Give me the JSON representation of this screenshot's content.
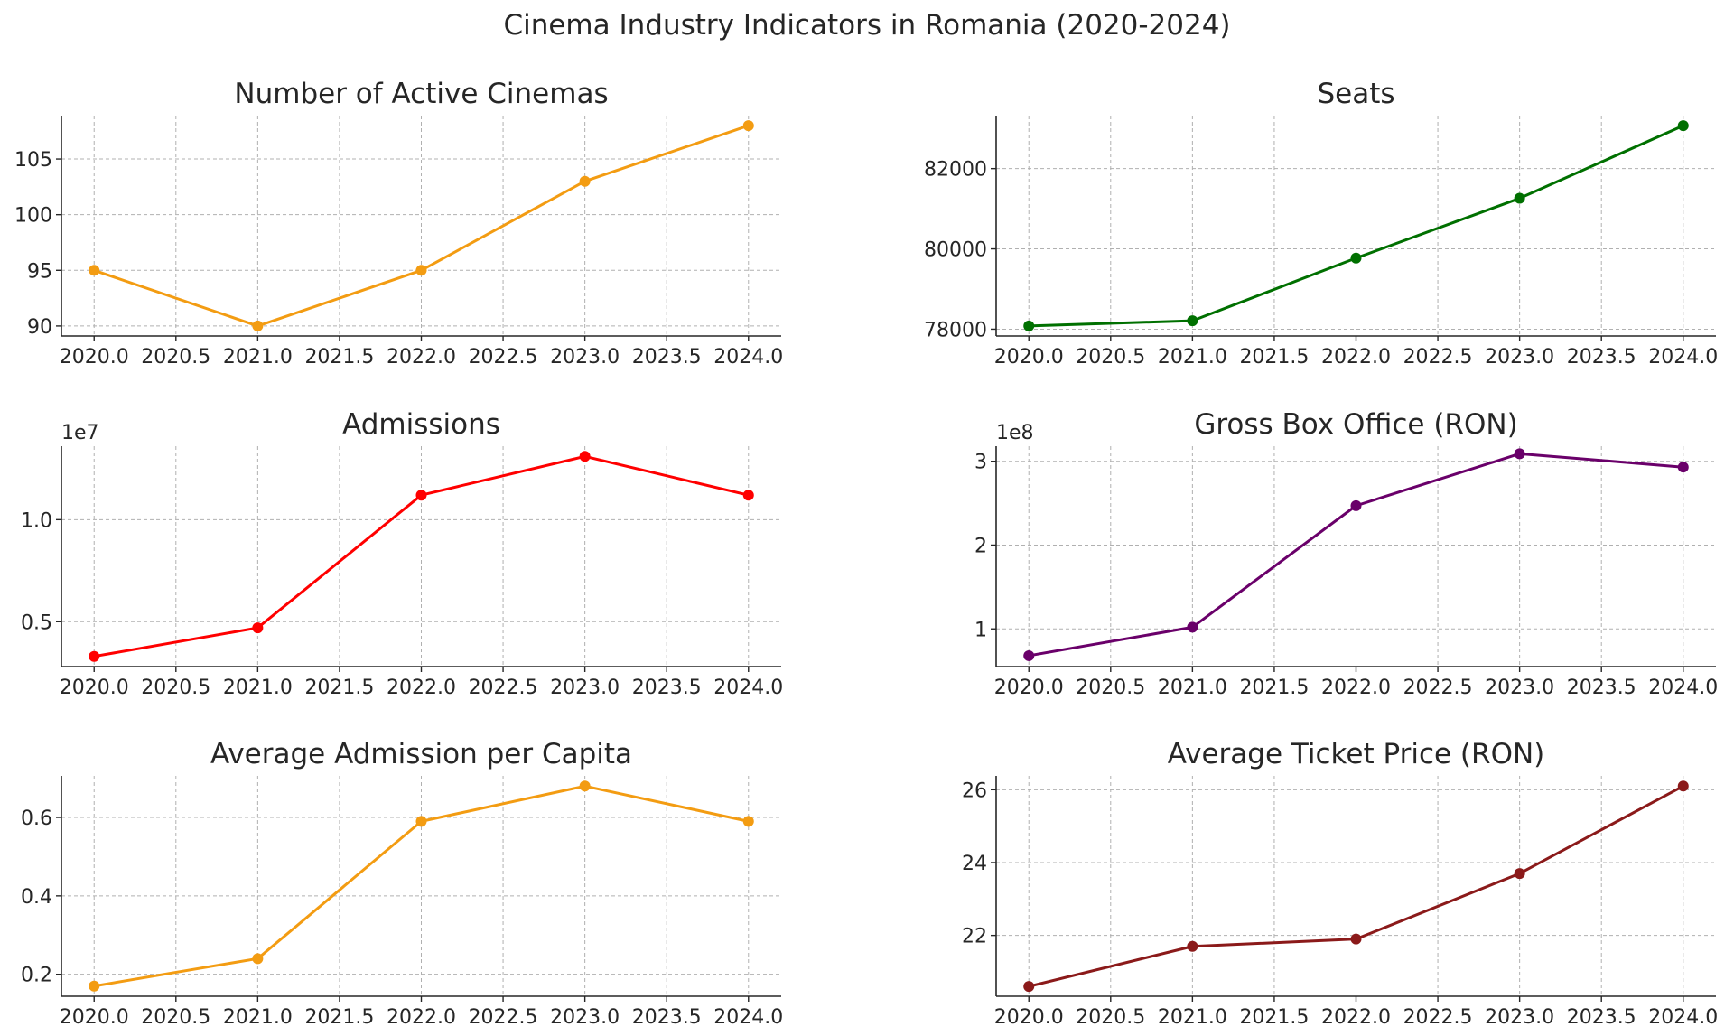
{
  "figure_title": "Cinema Industry Indicators in Romania (2020-2024)",
  "chart_data": [
    {
      "type": "line",
      "title": "Number of Active Cinemas",
      "xlabel": "",
      "ylabel": "",
      "color": "#f39c12",
      "x": [
        2020,
        2021,
        2022,
        2023,
        2024
      ],
      "series": [
        {
          "values": [
            95,
            90,
            95,
            103,
            108
          ]
        }
      ],
      "xlim": [
        2019.8,
        2024.2
      ],
      "ylim": [
        89.1,
        108.9
      ],
      "xticks": [
        2020,
        2020.5,
        2021,
        2021.5,
        2022,
        2022.5,
        2023,
        2023.5,
        2024
      ],
      "xtick_labels": [
        "2020.0",
        "2020.5",
        "2021.0",
        "2021.5",
        "2022.0",
        "2022.5",
        "2023.0",
        "2023.5",
        "2024.0"
      ],
      "yticks": [
        90,
        95,
        100,
        105
      ],
      "ytick_labels": [
        "90",
        "95",
        "100",
        "105"
      ],
      "offset_label": "",
      "grid": true
    },
    {
      "type": "line",
      "title": "Seats",
      "xlabel": "",
      "ylabel": "",
      "color": "#007000",
      "x": [
        2020,
        2021,
        2022,
        2023,
        2024
      ],
      "series": [
        {
          "values": [
            78080,
            78210,
            79770,
            81260,
            83070
          ]
        }
      ],
      "xlim": [
        2019.8,
        2024.2
      ],
      "ylim": [
        77830,
        83320
      ],
      "xticks": [
        2020,
        2020.5,
        2021,
        2021.5,
        2022,
        2022.5,
        2023,
        2023.5,
        2024
      ],
      "xtick_labels": [
        "2020.0",
        "2020.5",
        "2021.0",
        "2021.5",
        "2022.0",
        "2022.5",
        "2023.0",
        "2023.5",
        "2024.0"
      ],
      "yticks": [
        78000,
        80000,
        82000
      ],
      "ytick_labels": [
        "78000",
        "80000",
        "82000"
      ],
      "offset_label": "",
      "grid": true
    },
    {
      "type": "line",
      "title": "Admissions",
      "xlabel": "",
      "ylabel": "",
      "color": "#ff0000",
      "x": [
        2020,
        2021,
        2022,
        2023,
        2024
      ],
      "series": [
        {
          "values": [
            3300000,
            4700000,
            11200000,
            13100000,
            11200000
          ]
        }
      ],
      "xlim": [
        2019.8,
        2024.2
      ],
      "ylim": [
        2800000,
        13600000
      ],
      "xticks": [
        2020,
        2020.5,
        2021,
        2021.5,
        2022,
        2022.5,
        2023,
        2023.5,
        2024
      ],
      "xtick_labels": [
        "2020.0",
        "2020.5",
        "2021.0",
        "2021.5",
        "2022.0",
        "2022.5",
        "2023.0",
        "2023.5",
        "2024.0"
      ],
      "yticks": [
        5000000,
        10000000
      ],
      "ytick_labels": [
        "0.5",
        "1.0"
      ],
      "offset_label": "1e7",
      "grid": true
    },
    {
      "type": "line",
      "title": "Gross Box Office (RON)",
      "xlabel": "",
      "ylabel": "",
      "color": "#6a006a",
      "x": [
        2020,
        2021,
        2022,
        2023,
        2024
      ],
      "series": [
        {
          "values": [
            68000000,
            102000000,
            247000000,
            309000000,
            293000000
          ]
        }
      ],
      "xlim": [
        2019.8,
        2024.2
      ],
      "ylim": [
        55000000,
        318000000
      ],
      "xticks": [
        2020,
        2020.5,
        2021,
        2021.5,
        2022,
        2022.5,
        2023,
        2023.5,
        2024
      ],
      "xtick_labels": [
        "2020.0",
        "2020.5",
        "2021.0",
        "2021.5",
        "2022.0",
        "2022.5",
        "2023.0",
        "2023.5",
        "2024.0"
      ],
      "yticks": [
        100000000,
        200000000,
        300000000
      ],
      "ytick_labels": [
        "1",
        "2",
        "3"
      ],
      "offset_label": "1e8",
      "grid": true
    },
    {
      "type": "line",
      "title": "Average Admission per Capita",
      "xlabel": "",
      "ylabel": "",
      "color": "#f39c12",
      "x": [
        2020,
        2021,
        2022,
        2023,
        2024
      ],
      "series": [
        {
          "values": [
            0.17,
            0.24,
            0.59,
            0.68,
            0.59
          ]
        }
      ],
      "xlim": [
        2019.8,
        2024.2
      ],
      "ylim": [
        0.144,
        0.706
      ],
      "xticks": [
        2020,
        2020.5,
        2021,
        2021.5,
        2022,
        2022.5,
        2023,
        2023.5,
        2024
      ],
      "xtick_labels": [
        "2020.0",
        "2020.5",
        "2021.0",
        "2021.5",
        "2022.0",
        "2022.5",
        "2023.0",
        "2023.5",
        "2024.0"
      ],
      "yticks": [
        0.2,
        0.4,
        0.6
      ],
      "ytick_labels": [
        "0.2",
        "0.4",
        "0.6"
      ],
      "offset_label": "",
      "grid": true
    },
    {
      "type": "line",
      "title": "Average Ticket Price (RON)",
      "xlabel": "",
      "ylabel": "",
      "color": "#8b1a1a",
      "x": [
        2020,
        2021,
        2022,
        2023,
        2024
      ],
      "series": [
        {
          "values": [
            20.6,
            21.7,
            21.9,
            23.7,
            26.1
          ]
        }
      ],
      "xlim": [
        2019.8,
        2024.2
      ],
      "ylim": [
        20.33,
        26.38
      ],
      "xticks": [
        2020,
        2020.5,
        2021,
        2021.5,
        2022,
        2022.5,
        2023,
        2023.5,
        2024
      ],
      "xtick_labels": [
        "2020.0",
        "2020.5",
        "2021.0",
        "2021.5",
        "2022.0",
        "2022.5",
        "2023.0",
        "2023.5",
        "2024.0"
      ],
      "yticks": [
        22,
        24,
        26
      ],
      "ytick_labels": [
        "22",
        "24",
        "26"
      ],
      "offset_label": "",
      "grid": true
    }
  ]
}
